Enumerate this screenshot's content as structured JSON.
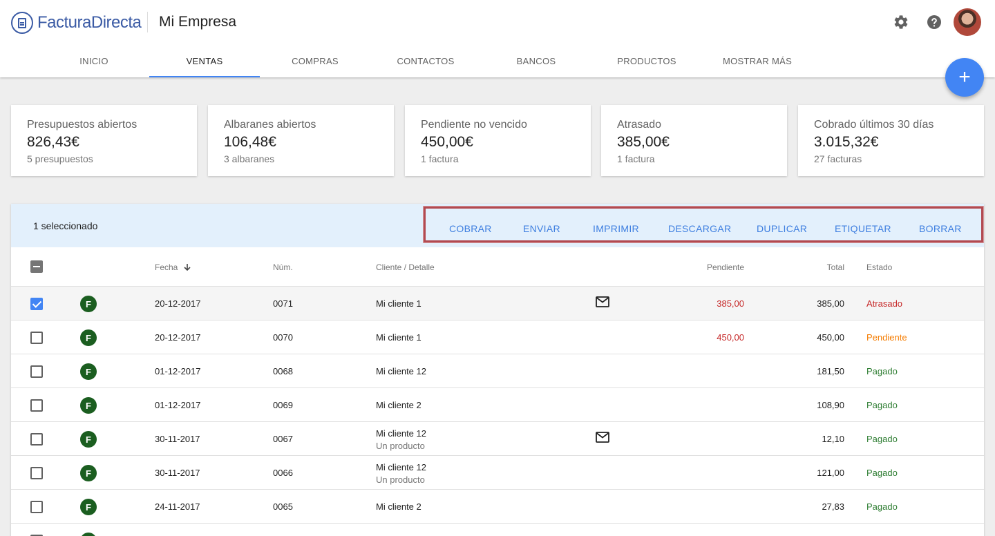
{
  "app": {
    "brand": "FacturaDirecta",
    "company": "Mi Empresa"
  },
  "header_icons": [
    "gear-icon",
    "help-icon",
    "avatar"
  ],
  "tabs": [
    {
      "label": "INICIO",
      "active": false
    },
    {
      "label": "VENTAS",
      "active": true
    },
    {
      "label": "COMPRAS",
      "active": false
    },
    {
      "label": "CONTACTOS",
      "active": false
    },
    {
      "label": "BANCOS",
      "active": false
    },
    {
      "label": "PRODUCTOS",
      "active": false
    },
    {
      "label": "MOSTRAR MÁS",
      "active": false
    }
  ],
  "fab": {
    "symbol": "+"
  },
  "cards": [
    {
      "title": "Presupuestos abiertos",
      "amount": "826,43€",
      "sub": "5 presupuestos"
    },
    {
      "title": "Albaranes abiertos",
      "amount": "106,48€",
      "sub": "3 albaranes"
    },
    {
      "title": "Pendiente no vencido",
      "amount": "450,00€",
      "sub": "1 factura"
    },
    {
      "title": "Atrasado",
      "amount": "385,00€",
      "sub": "1 factura"
    },
    {
      "title": "Cobrado últimos 30 días",
      "amount": "3.015,32€",
      "sub": "27 facturas"
    }
  ],
  "selection": {
    "text": "1 seleccionado",
    "actions": [
      "COBRAR",
      "ENVIAR",
      "IMPRIMIR",
      "DESCARGAR",
      "DUPLICAR",
      "ETIQUETAR",
      "BORRAR"
    ]
  },
  "table": {
    "headers": {
      "fecha": "Fecha",
      "num": "Núm.",
      "cliente": "Cliente / Detalle",
      "pendiente": "Pendiente",
      "total": "Total",
      "estado": "Estado"
    },
    "sort_icon": "arrow-down-icon",
    "rows": [
      {
        "checked": true,
        "badge": "F",
        "fecha": "20-12-2017",
        "num": "0071",
        "cliente": "Mi cliente 1",
        "detalle": "",
        "mail": true,
        "pendiente": "385,00",
        "total": "385,00",
        "estado": "Atrasado"
      },
      {
        "checked": false,
        "badge": "F",
        "fecha": "20-12-2017",
        "num": "0070",
        "cliente": "Mi cliente 1",
        "detalle": "",
        "mail": false,
        "pendiente": "450,00",
        "total": "450,00",
        "estado": "Pendiente"
      },
      {
        "checked": false,
        "badge": "F",
        "fecha": "01-12-2017",
        "num": "0068",
        "cliente": "Mi cliente 12",
        "detalle": "",
        "mail": false,
        "pendiente": "",
        "total": "181,50",
        "estado": "Pagado"
      },
      {
        "checked": false,
        "badge": "F",
        "fecha": "01-12-2017",
        "num": "0069",
        "cliente": "Mi cliente 2",
        "detalle": "",
        "mail": false,
        "pendiente": "",
        "total": "108,90",
        "estado": "Pagado"
      },
      {
        "checked": false,
        "badge": "F",
        "fecha": "30-11-2017",
        "num": "0067",
        "cliente": "Mi cliente 12",
        "detalle": "Un producto",
        "mail": true,
        "pendiente": "",
        "total": "12,10",
        "estado": "Pagado"
      },
      {
        "checked": false,
        "badge": "F",
        "fecha": "30-11-2017",
        "num": "0066",
        "cliente": "Mi cliente 12",
        "detalle": "Un producto",
        "mail": false,
        "pendiente": "",
        "total": "121,00",
        "estado": "Pagado"
      },
      {
        "checked": false,
        "badge": "F",
        "fecha": "24-11-2017",
        "num": "0065",
        "cliente": "Mi cliente 2",
        "detalle": "",
        "mail": false,
        "pendiente": "",
        "total": "27,83",
        "estado": "Pagado"
      }
    ]
  },
  "colors": {
    "brand": "#3b5ba5",
    "accent": "#4285f4",
    "overdue": "#c62828",
    "pending": "#f57c00",
    "paid": "#2e7d32",
    "badge": "#1b5e20",
    "highlight_frame": "#b24a51"
  }
}
